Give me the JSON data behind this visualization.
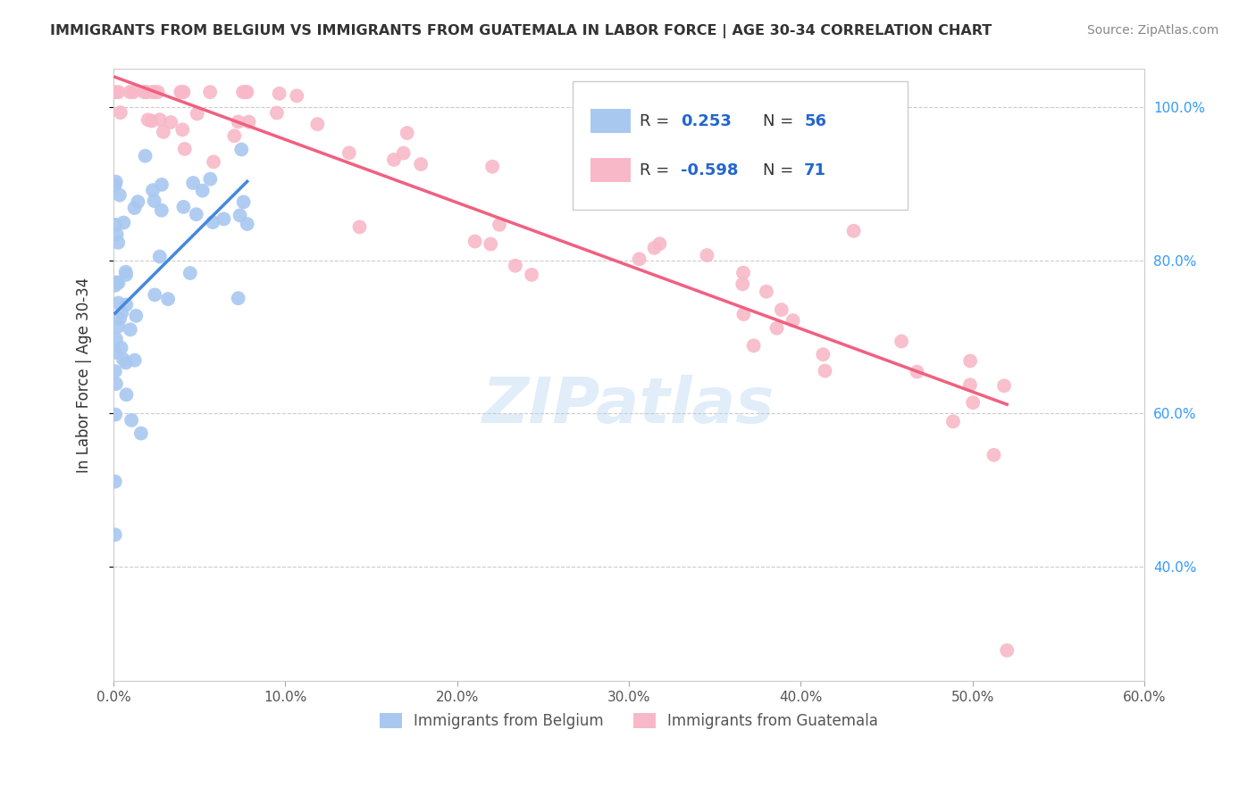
{
  "title": "IMMIGRANTS FROM BELGIUM VS IMMIGRANTS FROM GUATEMALA IN LABOR FORCE | AGE 30-34 CORRELATION CHART",
  "source": "Source: ZipAtlas.com",
  "ylabel": "In Labor Force | Age 30-34",
  "xlim": [
    0.0,
    0.6
  ],
  "ylim": [
    0.25,
    1.05
  ],
  "belgium_color": "#a8c8f0",
  "guatemala_color": "#f8b8c8",
  "belgium_line_color": "#4488dd",
  "guatemala_line_color": "#f06080",
  "belgium_R": 0.253,
  "belgium_N": 56,
  "guatemala_R": -0.598,
  "guatemala_N": 71,
  "legend_color": "#2266cc",
  "watermark": "ZIPatlas",
  "background_color": "#ffffff",
  "grid_color": "#cccccc"
}
